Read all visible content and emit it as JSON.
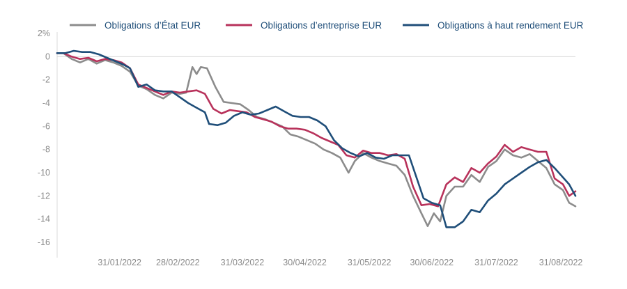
{
  "chart_data": {
    "type": "line",
    "title": "",
    "xlabel": "",
    "ylabel": "",
    "y_unit": "%",
    "ylim": [
      -16,
      2
    ],
    "yticks": [
      2,
      0,
      -2,
      -4,
      -6,
      -8,
      -10,
      -12,
      -14,
      -16
    ],
    "ytick_labels": [
      "2%",
      "0",
      "-2",
      "-4",
      "-6",
      "-8",
      "-10",
      "-12",
      "-14",
      "-16"
    ],
    "xlim": [
      "2022-01-01",
      "2022-09-07"
    ],
    "xticks": [
      "2022-01-31",
      "2022-02-28",
      "2022-03-31",
      "2022-04-30",
      "2022-05-31",
      "2022-06-30",
      "2022-07-31",
      "2022-08-31"
    ],
    "xtick_labels": [
      "31/01/2022",
      "28/02/2022",
      "31/03/2022",
      "30/04/2022",
      "31/05/2022",
      "30/06/2022",
      "31/07/2022",
      "31/08/2022"
    ],
    "grid": false,
    "legend_position": "top",
    "series": [
      {
        "name": "Obligations d’État EUR",
        "color": "#8c8c8c",
        "points": [
          [
            "2022-01-01",
            0.3
          ],
          [
            "2022-01-04",
            0.3
          ],
          [
            "2022-01-08",
            -0.2
          ],
          [
            "2022-01-12",
            -0.5
          ],
          [
            "2022-01-16",
            -0.2
          ],
          [
            "2022-01-20",
            -0.6
          ],
          [
            "2022-01-24",
            -0.3
          ],
          [
            "2022-01-28",
            -0.5
          ],
          [
            "2022-02-01",
            -0.8
          ],
          [
            "2022-02-05",
            -1.3
          ],
          [
            "2022-02-09",
            -2.5
          ],
          [
            "2022-02-13",
            -2.8
          ],
          [
            "2022-02-17",
            -3.3
          ],
          [
            "2022-02-21",
            -3.6
          ],
          [
            "2022-02-25",
            -3.1
          ],
          [
            "2022-03-01",
            -3.2
          ],
          [
            "2022-03-04",
            -3.1
          ],
          [
            "2022-03-07",
            -0.9
          ],
          [
            "2022-03-09",
            -1.5
          ],
          [
            "2022-03-11",
            -0.9
          ],
          [
            "2022-03-14",
            -1.0
          ],
          [
            "2022-03-18",
            -2.6
          ],
          [
            "2022-03-22",
            -3.9
          ],
          [
            "2022-03-26",
            -4.0
          ],
          [
            "2022-03-30",
            -4.1
          ],
          [
            "2022-04-03",
            -4.6
          ],
          [
            "2022-04-07",
            -5.2
          ],
          [
            "2022-04-11",
            -5.4
          ],
          [
            "2022-04-15",
            -5.7
          ],
          [
            "2022-04-19",
            -6.0
          ],
          [
            "2022-04-23",
            -6.7
          ],
          [
            "2022-04-27",
            -6.9
          ],
          [
            "2022-05-01",
            -7.2
          ],
          [
            "2022-05-05",
            -7.5
          ],
          [
            "2022-05-09",
            -8.0
          ],
          [
            "2022-05-13",
            -8.3
          ],
          [
            "2022-05-17",
            -8.7
          ],
          [
            "2022-05-21",
            -10.0
          ],
          [
            "2022-05-24",
            -9.0
          ],
          [
            "2022-05-28",
            -8.3
          ],
          [
            "2022-06-01",
            -8.7
          ],
          [
            "2022-06-05",
            -9.0
          ],
          [
            "2022-06-09",
            -9.2
          ],
          [
            "2022-06-13",
            -9.4
          ],
          [
            "2022-06-17",
            -10.2
          ],
          [
            "2022-06-21",
            -12.0
          ],
          [
            "2022-06-25",
            -13.5
          ],
          [
            "2022-06-28",
            -14.6
          ],
          [
            "2022-07-01",
            -13.5
          ],
          [
            "2022-07-04",
            -14.2
          ],
          [
            "2022-07-07",
            -12.0
          ],
          [
            "2022-07-11",
            -11.2
          ],
          [
            "2022-07-15",
            -11.2
          ],
          [
            "2022-07-19",
            -10.2
          ],
          [
            "2022-07-23",
            -10.8
          ],
          [
            "2022-07-27",
            -9.5
          ],
          [
            "2022-07-31",
            -9.0
          ],
          [
            "2022-08-04",
            -8.0
          ],
          [
            "2022-08-08",
            -8.5
          ],
          [
            "2022-08-12",
            -8.7
          ],
          [
            "2022-08-16",
            -8.4
          ],
          [
            "2022-08-20",
            -9.0
          ],
          [
            "2022-08-24",
            -9.6
          ],
          [
            "2022-08-28",
            -11.0
          ],
          [
            "2022-09-01",
            -11.5
          ],
          [
            "2022-09-04",
            -12.6
          ],
          [
            "2022-09-07",
            -12.9
          ]
        ]
      },
      {
        "name": "Obligations d’entreprise EUR",
        "color": "#b8325b",
        "points": [
          [
            "2022-01-01",
            0.3
          ],
          [
            "2022-01-04",
            0.3
          ],
          [
            "2022-01-08",
            0.0
          ],
          [
            "2022-01-12",
            -0.2
          ],
          [
            "2022-01-16",
            -0.1
          ],
          [
            "2022-01-20",
            -0.4
          ],
          [
            "2022-01-24",
            -0.2
          ],
          [
            "2022-01-28",
            -0.3
          ],
          [
            "2022-02-01",
            -0.5
          ],
          [
            "2022-02-05",
            -1.0
          ],
          [
            "2022-02-09",
            -2.4
          ],
          [
            "2022-02-13",
            -2.7
          ],
          [
            "2022-02-17",
            -3.0
          ],
          [
            "2022-02-21",
            -3.3
          ],
          [
            "2022-02-25",
            -3.0
          ],
          [
            "2022-03-01",
            -3.1
          ],
          [
            "2022-03-05",
            -3.0
          ],
          [
            "2022-03-09",
            -2.9
          ],
          [
            "2022-03-13",
            -3.2
          ],
          [
            "2022-03-17",
            -4.5
          ],
          [
            "2022-03-21",
            -4.9
          ],
          [
            "2022-03-25",
            -4.6
          ],
          [
            "2022-03-29",
            -4.7
          ],
          [
            "2022-04-02",
            -4.8
          ],
          [
            "2022-04-06",
            -5.2
          ],
          [
            "2022-04-10",
            -5.4
          ],
          [
            "2022-04-14",
            -5.6
          ],
          [
            "2022-04-18",
            -6.0
          ],
          [
            "2022-04-22",
            -6.2
          ],
          [
            "2022-04-26",
            -6.2
          ],
          [
            "2022-04-30",
            -6.3
          ],
          [
            "2022-05-04",
            -6.6
          ],
          [
            "2022-05-08",
            -7.0
          ],
          [
            "2022-05-12",
            -7.3
          ],
          [
            "2022-05-16",
            -7.6
          ],
          [
            "2022-05-20",
            -8.5
          ],
          [
            "2022-05-24",
            -8.7
          ],
          [
            "2022-05-28",
            -8.1
          ],
          [
            "2022-06-01",
            -8.3
          ],
          [
            "2022-06-05",
            -8.3
          ],
          [
            "2022-06-09",
            -8.5
          ],
          [
            "2022-06-13",
            -8.4
          ],
          [
            "2022-06-17",
            -8.8
          ],
          [
            "2022-06-21",
            -11.2
          ],
          [
            "2022-06-25",
            -12.8
          ],
          [
            "2022-06-29",
            -12.7
          ],
          [
            "2022-07-03",
            -12.9
          ],
          [
            "2022-07-07",
            -11.0
          ],
          [
            "2022-07-11",
            -10.4
          ],
          [
            "2022-07-15",
            -10.8
          ],
          [
            "2022-07-19",
            -9.6
          ],
          [
            "2022-07-23",
            -10.0
          ],
          [
            "2022-07-27",
            -9.2
          ],
          [
            "2022-07-31",
            -8.6
          ],
          [
            "2022-08-04",
            -7.6
          ],
          [
            "2022-08-08",
            -8.2
          ],
          [
            "2022-08-12",
            -7.8
          ],
          [
            "2022-08-16",
            -8.0
          ],
          [
            "2022-08-20",
            -8.2
          ],
          [
            "2022-08-24",
            -8.2
          ],
          [
            "2022-08-28",
            -10.5
          ],
          [
            "2022-09-01",
            -11.0
          ],
          [
            "2022-09-04",
            -12.0
          ],
          [
            "2022-09-07",
            -11.6
          ]
        ]
      },
      {
        "name": "Obligations à haut rendement EUR",
        "color": "#1f4e79",
        "points": [
          [
            "2022-01-01",
            0.3
          ],
          [
            "2022-01-05",
            0.3
          ],
          [
            "2022-01-09",
            0.5
          ],
          [
            "2022-01-13",
            0.4
          ],
          [
            "2022-01-17",
            0.4
          ],
          [
            "2022-01-21",
            0.2
          ],
          [
            "2022-01-25",
            -0.1
          ],
          [
            "2022-01-29",
            -0.4
          ],
          [
            "2022-02-02",
            -0.7
          ],
          [
            "2022-02-05",
            -1.0
          ],
          [
            "2022-02-09",
            -2.6
          ],
          [
            "2022-02-13",
            -2.4
          ],
          [
            "2022-02-17",
            -2.9
          ],
          [
            "2022-02-21",
            -3.0
          ],
          [
            "2022-02-25",
            -3.0
          ],
          [
            "2022-03-01",
            -3.5
          ],
          [
            "2022-03-05",
            -4.0
          ],
          [
            "2022-03-09",
            -4.4
          ],
          [
            "2022-03-13",
            -4.8
          ],
          [
            "2022-03-15",
            -5.8
          ],
          [
            "2022-03-19",
            -5.9
          ],
          [
            "2022-03-23",
            -5.7
          ],
          [
            "2022-03-27",
            -5.1
          ],
          [
            "2022-03-31",
            -4.8
          ],
          [
            "2022-04-04",
            -5.0
          ],
          [
            "2022-04-08",
            -4.9
          ],
          [
            "2022-04-12",
            -4.6
          ],
          [
            "2022-04-16",
            -4.3
          ],
          [
            "2022-04-20",
            -4.7
          ],
          [
            "2022-04-24",
            -5.1
          ],
          [
            "2022-04-28",
            -5.2
          ],
          [
            "2022-05-02",
            -5.2
          ],
          [
            "2022-05-06",
            -5.5
          ],
          [
            "2022-05-10",
            -6.0
          ],
          [
            "2022-05-14",
            -7.2
          ],
          [
            "2022-05-18",
            -7.9
          ],
          [
            "2022-05-22",
            -8.3
          ],
          [
            "2022-05-26",
            -8.6
          ],
          [
            "2022-05-30",
            -8.3
          ],
          [
            "2022-06-03",
            -8.7
          ],
          [
            "2022-06-07",
            -8.8
          ],
          [
            "2022-06-11",
            -8.5
          ],
          [
            "2022-06-15",
            -8.5
          ],
          [
            "2022-06-19",
            -8.5
          ],
          [
            "2022-06-23",
            -10.6
          ],
          [
            "2022-06-26",
            -12.2
          ],
          [
            "2022-06-30",
            -12.6
          ],
          [
            "2022-07-04",
            -12.8
          ],
          [
            "2022-07-07",
            -14.7
          ],
          [
            "2022-07-11",
            -14.7
          ],
          [
            "2022-07-15",
            -14.2
          ],
          [
            "2022-07-19",
            -13.2
          ],
          [
            "2022-07-23",
            -13.4
          ],
          [
            "2022-07-27",
            -12.4
          ],
          [
            "2022-07-31",
            -11.8
          ],
          [
            "2022-08-04",
            -11.0
          ],
          [
            "2022-08-08",
            -10.5
          ],
          [
            "2022-08-12",
            -10.0
          ],
          [
            "2022-08-16",
            -9.5
          ],
          [
            "2022-08-20",
            -9.1
          ],
          [
            "2022-08-24",
            -8.9
          ],
          [
            "2022-08-28",
            -9.6
          ],
          [
            "2022-09-01",
            -10.4
          ],
          [
            "2022-09-04",
            -11.0
          ],
          [
            "2022-09-07",
            -12.0
          ]
        ]
      }
    ]
  }
}
